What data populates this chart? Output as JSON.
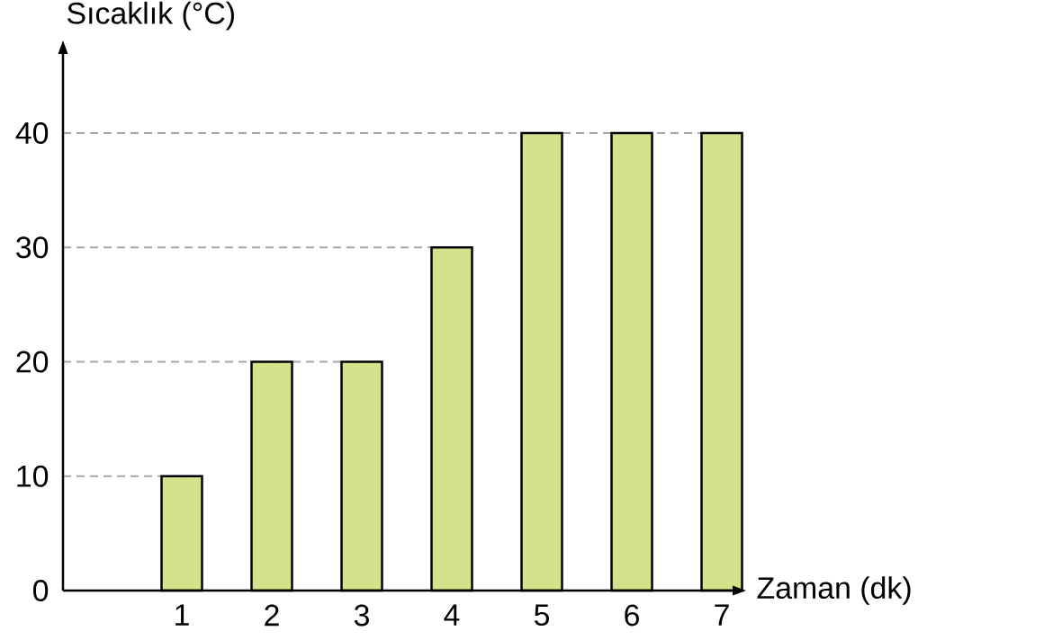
{
  "chart_data": {
    "type": "bar",
    "xlabel": "Zaman (dk)",
    "ylabel": "Sıcaklık (°C)",
    "categories": [
      "1",
      "2",
      "3",
      "4",
      "5",
      "6",
      "7"
    ],
    "values": [
      10,
      20,
      20,
      30,
      40,
      40,
      40
    ],
    "color": "#d4e28c",
    "ylim": [
      0,
      47
    ],
    "yticks": [
      0,
      10,
      20,
      30,
      40
    ],
    "ref_lines": [
      {
        "axis": "y",
        "value": 10,
        "color": "#a6a6a6",
        "line_style": "dashed"
      },
      {
        "axis": "y",
        "value": 20,
        "color": "#a6a6a6",
        "line_style": "dashed"
      },
      {
        "axis": "y",
        "value": 30,
        "color": "#a6a6a6",
        "line_style": "dashed"
      },
      {
        "axis": "y",
        "value": 40,
        "color": "#a6a6a6",
        "line_style": "dashed"
      }
    ]
  }
}
